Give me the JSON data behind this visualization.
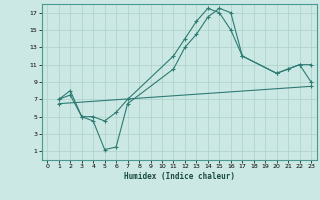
{
  "xlabel": "Humidex (Indice chaleur)",
  "xlim": [
    -0.5,
    23.5
  ],
  "ylim": [
    0,
    18
  ],
  "xticks": [
    0,
    1,
    2,
    3,
    4,
    5,
    6,
    7,
    8,
    9,
    10,
    11,
    12,
    13,
    14,
    15,
    16,
    17,
    18,
    19,
    20,
    21,
    22,
    23
  ],
  "yticks": [
    1,
    3,
    5,
    7,
    9,
    11,
    13,
    15,
    17
  ],
  "bg_color": "#cce8e4",
  "grid_color": "#b0d4cc",
  "line_color": "#2d7b72",
  "line1_x": [
    1,
    2,
    3,
    4,
    5,
    6,
    7,
    11,
    12,
    13,
    14,
    15,
    16,
    17,
    20,
    21,
    22,
    23
  ],
  "line1_y": [
    7,
    8,
    5,
    5,
    4.5,
    5.5,
    7,
    12,
    14,
    16,
    17.5,
    17,
    15,
    12,
    10,
    10.5,
    11,
    11
  ],
  "line2_x": [
    1,
    2,
    3,
    4,
    5,
    6,
    7,
    11,
    12,
    13,
    14,
    15,
    16,
    17,
    20,
    21,
    22,
    23
  ],
  "line2_y": [
    7,
    7.5,
    5,
    4.5,
    1.2,
    1.5,
    6.5,
    10.5,
    13,
    14.5,
    16.5,
    17.5,
    17,
    12,
    10,
    10.5,
    11,
    9
  ],
  "line3_x": [
    1,
    23
  ],
  "line3_y": [
    6.5,
    8.5
  ]
}
